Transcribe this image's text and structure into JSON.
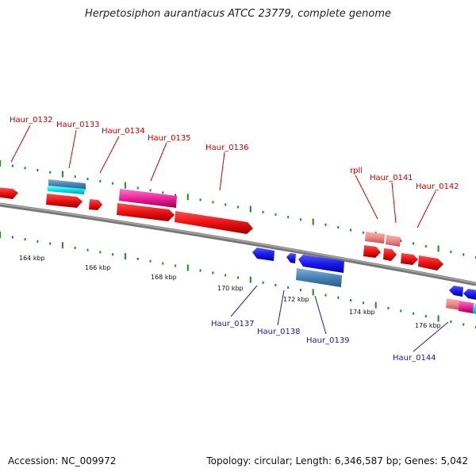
{
  "header": {
    "title": "Herpetosiphon aurantiacus ATCC 23779, complete genome"
  },
  "footer": {
    "accession": "Accession: NC_009972",
    "summary": "Topology: circular; Length: 6,346,587 bp; Genes: 5,042"
  },
  "scale": {
    "ticks": [
      "164 kbp",
      "166 kbp",
      "168 kbp",
      "170 kbp",
      "172 kbp",
      "174 kbp",
      "176 kbp"
    ]
  },
  "genes": {
    "forward": [
      "Haur_0132",
      "Haur_0133",
      "Haur_0134",
      "Haur_0135",
      "Haur_0136",
      "rpll",
      "Haur_0141",
      "Haur_0142"
    ],
    "reverse": [
      "Haur_0137",
      "Haur_0138",
      "Haur_0139",
      "Haur_0144"
    ]
  },
  "colors": {
    "forward_gene": "#ee1111",
    "forward_rna": "#ee8888",
    "reverse_gene": "#1a1aee",
    "pseudo": "#4682b4",
    "cyan": "#00e5e5",
    "magenta": "#ee2299",
    "backbone": "#888888",
    "fwd_label": "#cc0000",
    "rev_label": "#1a1aaa",
    "tick": "#228822"
  }
}
